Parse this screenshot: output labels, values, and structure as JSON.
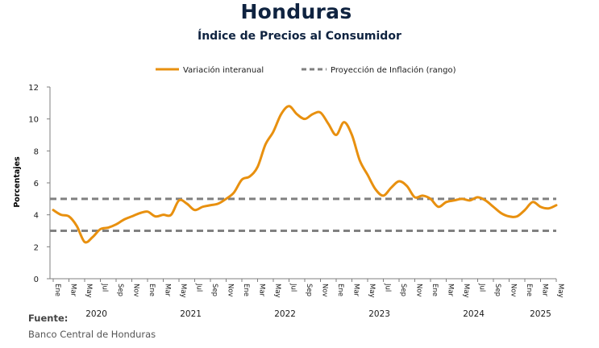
{
  "header": {
    "title": "Honduras",
    "subtitle": "Índice de Precios al Consumidor"
  },
  "source": {
    "label": "Fuente:",
    "value": "Banco Central de Honduras"
  },
  "colors": {
    "line": "#E8900F",
    "projection": "#808080",
    "axis": "#7f7f7f",
    "text": "#1a1a1a"
  },
  "chart_data": {
    "type": "line",
    "title": "",
    "ylabel": "Porcentajes",
    "xlabel": "",
    "ylim": [
      0,
      12
    ],
    "yticks": [
      0,
      2,
      4,
      6,
      8,
      10,
      12
    ],
    "grid": false,
    "legend_position": "top-center",
    "x": [
      "2020-01",
      "2020-02",
      "2020-03",
      "2020-04",
      "2020-05",
      "2020-06",
      "2020-07",
      "2020-08",
      "2020-09",
      "2020-10",
      "2020-11",
      "2020-12",
      "2021-01",
      "2021-02",
      "2021-03",
      "2021-04",
      "2021-05",
      "2021-06",
      "2021-07",
      "2021-08",
      "2021-09",
      "2021-10",
      "2021-11",
      "2021-12",
      "2022-01",
      "2022-02",
      "2022-03",
      "2022-04",
      "2022-05",
      "2022-06",
      "2022-07",
      "2022-08",
      "2022-09",
      "2022-10",
      "2022-11",
      "2022-12",
      "2023-01",
      "2023-02",
      "2023-03",
      "2023-04",
      "2023-05",
      "2023-06",
      "2023-07",
      "2023-08",
      "2023-09",
      "2023-10",
      "2023-11",
      "2023-12",
      "2024-01",
      "2024-02",
      "2024-03",
      "2024-04",
      "2024-05",
      "2024-06",
      "2024-07",
      "2024-08",
      "2024-09",
      "2024-10",
      "2024-11",
      "2024-12",
      "2025-01",
      "2025-02",
      "2025-03",
      "2025-04",
      "2025-05"
    ],
    "month_tick_labels": [
      "Ene",
      "Mar",
      "May",
      "Jul",
      "Sep",
      "Nov",
      "Ene",
      "Mar",
      "May",
      "Jul",
      "Sep",
      "Nov",
      "Ene",
      "Mar",
      "May",
      "Jul",
      "Sep",
      "Nov",
      "Ene",
      "Mar",
      "May",
      "Jul",
      "Sep",
      "Nov",
      "Ene",
      "Mar",
      "May",
      "Jul",
      "Sep",
      "Nov",
      "Ene",
      "Mar",
      "May"
    ],
    "year_labels": [
      "2020",
      "2021",
      "2022",
      "2023",
      "2024",
      "2025"
    ],
    "series": [
      {
        "name": "Variación interanual",
        "style": "solid",
        "values": [
          4.3,
          4.0,
          3.9,
          3.3,
          2.3,
          2.6,
          3.1,
          3.2,
          3.4,
          3.7,
          3.9,
          4.1,
          4.2,
          3.9,
          4.0,
          4.0,
          4.9,
          4.7,
          4.3,
          4.5,
          4.6,
          4.7,
          5.0,
          5.4,
          6.2,
          6.4,
          7.0,
          8.4,
          9.2,
          10.3,
          10.8,
          10.3,
          10.0,
          10.3,
          10.4,
          9.7,
          9.0,
          9.8,
          9.0,
          7.4,
          6.5,
          5.6,
          5.2,
          5.7,
          6.1,
          5.8,
          5.1,
          5.2,
          5.0,
          4.5,
          4.8,
          4.9,
          5.0,
          4.9,
          5.1,
          4.9,
          4.5,
          4.1,
          3.9,
          3.9,
          4.3,
          4.8,
          4.5,
          4.4,
          4.6
        ]
      },
      {
        "name": "Proyección de Inflación (rango)",
        "style": "dashed",
        "values_upper": 5.0,
        "values_lower": 3.0
      }
    ]
  }
}
